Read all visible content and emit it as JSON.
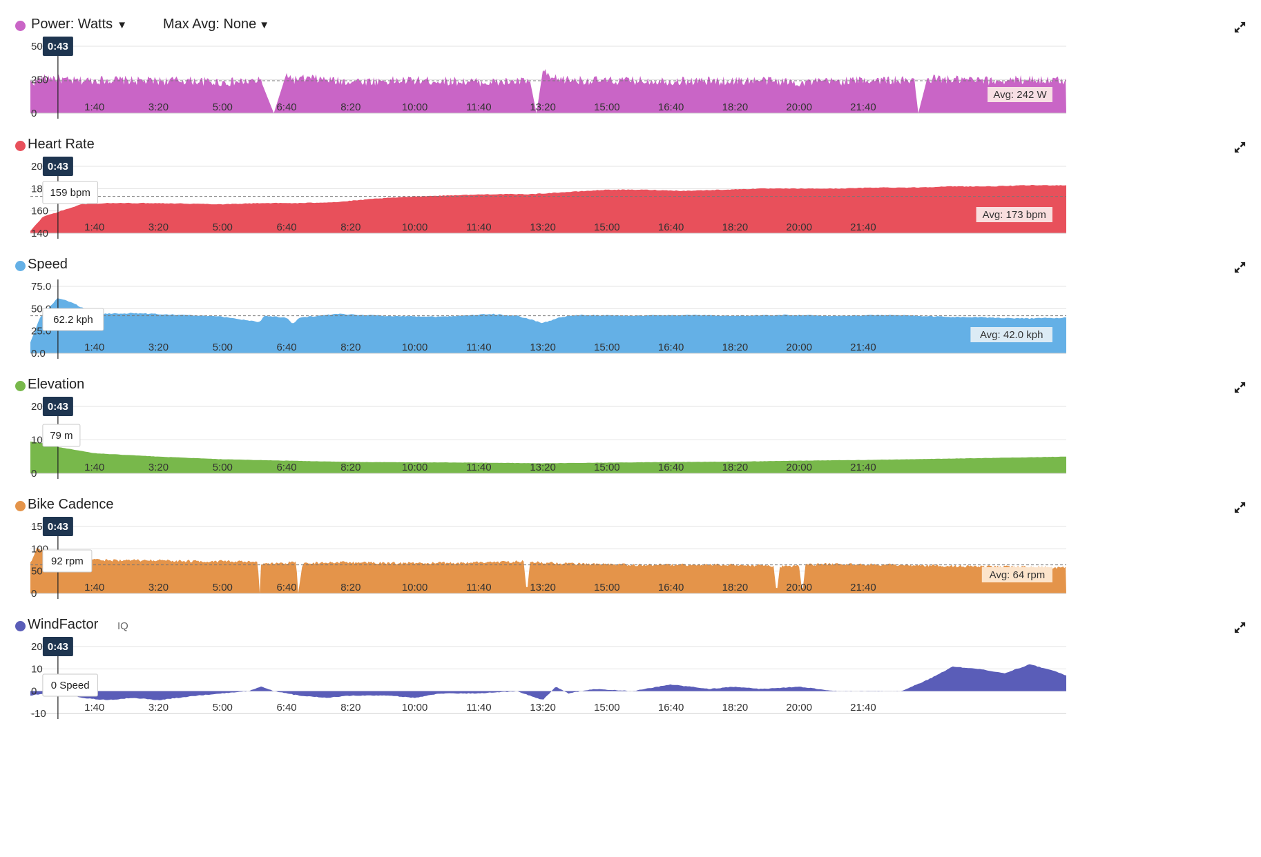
{
  "cursor_time": "0:43",
  "x_ticks": [
    "1:40",
    "3:20",
    "5:00",
    "6:40",
    "8:20",
    "10:00",
    "11:40",
    "13:20",
    "15:00",
    "16:40",
    "18:20",
    "20:00",
    "21:40"
  ],
  "panels": [
    {
      "id": "power",
      "title": "Power: Watts",
      "dropdown": true,
      "max_avg_label": "Max Avg: None",
      "color": "#c965c6",
      "y_ticks": [
        "500",
        "250",
        "0"
      ],
      "y_range": [
        0,
        500
      ],
      "avg_label": "Avg: 242 W",
      "avg_value": 242,
      "tooltip": "",
      "expand_icon": "expand-icon"
    },
    {
      "id": "heart-rate",
      "title": "Heart Rate",
      "color": "#e8505b",
      "y_ticks": [
        "200",
        "180",
        "160",
        "140"
      ],
      "y_range": [
        140,
        200
      ],
      "avg_label": "Avg: 173 bpm",
      "avg_value": 173,
      "tooltip": "159 bpm",
      "expand_icon": "expand-icon"
    },
    {
      "id": "speed",
      "title": "Speed",
      "color": "#64b0e6",
      "y_ticks": [
        "75.0",
        "50.0",
        "25.0",
        "0.0"
      ],
      "y_range": [
        0,
        75
      ],
      "avg_label": "Avg: 42.0 kph",
      "avg_value": 42,
      "tooltip": "62.2 kph",
      "expand_icon": "expand-icon"
    },
    {
      "id": "elevation",
      "title": "Elevation",
      "color": "#78b84b",
      "y_ticks": [
        "200.0",
        "100",
        "0"
      ],
      "y_range": [
        0,
        200
      ],
      "avg_label": "",
      "avg_value": null,
      "tooltip": "79 m",
      "expand_icon": "expand-icon"
    },
    {
      "id": "bike-cadence",
      "title": "Bike Cadence",
      "color": "#e4944a",
      "y_ticks": [
        "150",
        "100",
        "50",
        "0"
      ],
      "y_range": [
        0,
        150
      ],
      "avg_label": "Avg: 64 rpm",
      "avg_value": 64,
      "tooltip": "92 rpm",
      "expand_icon": "expand-icon"
    },
    {
      "id": "windfactor",
      "title": "WindFactor",
      "badge": "IQ",
      "color": "#5a5db8",
      "y_ticks": [
        "20",
        "10",
        "0",
        "-10"
      ],
      "y_range": [
        -10,
        20
      ],
      "avg_label": "",
      "avg_value": null,
      "tooltip": "0 Speed",
      "expand_icon": "expand-icon"
    }
  ],
  "chart_data": [
    {
      "type": "area",
      "ylabel": "Power: Watts",
      "ylim": [
        0,
        500
      ],
      "x_unit": "seconds",
      "x": [
        0,
        30,
        60,
        120,
        180,
        240,
        300,
        360,
        380,
        400,
        410,
        440,
        480,
        540,
        600,
        660,
        720,
        780,
        790,
        800,
        810,
        840,
        900,
        960,
        1020,
        1080,
        1140,
        1200,
        1260,
        1320,
        1380,
        1386,
        1400,
        1440,
        1500,
        1560,
        1617
      ],
      "values": [
        230,
        270,
        240,
        250,
        240,
        245,
        230,
        240,
        0,
        300,
        250,
        260,
        240,
        240,
        245,
        240,
        230,
        240,
        0,
        320,
        260,
        250,
        240,
        245,
        240,
        240,
        245,
        230,
        240,
        250,
        240,
        0,
        260,
        250,
        240,
        255,
        240
      ]
    },
    {
      "type": "area",
      "ylabel": "Heart Rate",
      "ylim": [
        140,
        200
      ],
      "x_unit": "seconds",
      "x": [
        0,
        20,
        43,
        80,
        120,
        200,
        300,
        360,
        420,
        480,
        540,
        600,
        660,
        720,
        780,
        840,
        900,
        960,
        1020,
        1080,
        1140,
        1200,
        1260,
        1320,
        1380,
        1440,
        1500,
        1560,
        1617
      ],
      "values": [
        142,
        155,
        159,
        166,
        167,
        167,
        166,
        167,
        167,
        168,
        171,
        173,
        174,
        175,
        175,
        177,
        179,
        179,
        178,
        179,
        180,
        180,
        180,
        181,
        181,
        182,
        182,
        183,
        183
      ]
    },
    {
      "type": "area",
      "ylabel": "Speed",
      "ylim": [
        0,
        75
      ],
      "x_unit": "seconds",
      "x": [
        0,
        15,
        43,
        70,
        100,
        160,
        240,
        300,
        358,
        365,
        400,
        410,
        420,
        480,
        560,
        640,
        720,
        760,
        800,
        830,
        860,
        940,
        1020,
        1100,
        1180,
        1260,
        1340,
        1420,
        1500,
        1560,
        1617
      ],
      "values": [
        12,
        40,
        62.2,
        55,
        44,
        45,
        43,
        41,
        35,
        42,
        40,
        33,
        40,
        44,
        42,
        41,
        44,
        42,
        34,
        41,
        43,
        42,
        43,
        42,
        43,
        42,
        43,
        41,
        40,
        39,
        40
      ]
    },
    {
      "type": "area",
      "ylabel": "Elevation",
      "ylim": [
        0,
        200
      ],
      "x_unit": "seconds",
      "x": [
        0,
        20,
        43,
        100,
        200,
        300,
        400,
        500,
        600,
        700,
        800,
        900,
        1000,
        1100,
        1200,
        1300,
        1400,
        1500,
        1617
      ],
      "values": [
        95,
        90,
        79,
        60,
        50,
        42,
        38,
        34,
        33,
        32,
        30,
        32,
        34,
        35,
        38,
        40,
        43,
        46,
        50
      ]
    },
    {
      "type": "area",
      "ylabel": "Bike Cadence",
      "ylim": [
        0,
        150
      ],
      "x_unit": "seconds",
      "x": [
        0,
        10,
        43,
        80,
        100,
        150,
        200,
        260,
        300,
        355,
        358,
        360,
        415,
        418,
        425,
        480,
        560,
        640,
        720,
        770,
        775,
        780,
        860,
        940,
        1020,
        1100,
        1160,
        1165,
        1170,
        1200,
        1205,
        1210,
        1260,
        1340,
        1420,
        1500,
        1617
      ],
      "values": [
        70,
        100,
        92,
        80,
        75,
        74,
        74,
        72,
        72,
        70,
        0,
        65,
        70,
        0,
        68,
        70,
        68,
        68,
        70,
        72,
        0,
        70,
        66,
        64,
        64,
        64,
        62,
        0,
        60,
        62,
        0,
        64,
        66,
        64,
        62,
        60,
        58
      ]
    },
    {
      "type": "area",
      "ylabel": "WindFactor",
      "ylim": [
        -10,
        20
      ],
      "x_unit": "seconds",
      "x": [
        0,
        43,
        80,
        120,
        160,
        200,
        260,
        300,
        340,
        360,
        380,
        420,
        460,
        500,
        560,
        600,
        640,
        700,
        760,
        800,
        820,
        840,
        880,
        940,
        1000,
        1060,
        1100,
        1140,
        1200,
        1260,
        1300,
        1360,
        1400,
        1440,
        1480,
        1520,
        1560,
        1600,
        1617
      ],
      "values": [
        -2,
        0,
        -3,
        -4,
        -3,
        -4,
        -2,
        -1,
        0,
        2,
        0,
        -2,
        -3,
        -2,
        -2,
        -3,
        -1,
        -1,
        0,
        -4,
        2,
        -1,
        1,
        0,
        3,
        1,
        2,
        1,
        2,
        0,
        0,
        0,
        5,
        11,
        10,
        8,
        12,
        9,
        7
      ]
    }
  ]
}
